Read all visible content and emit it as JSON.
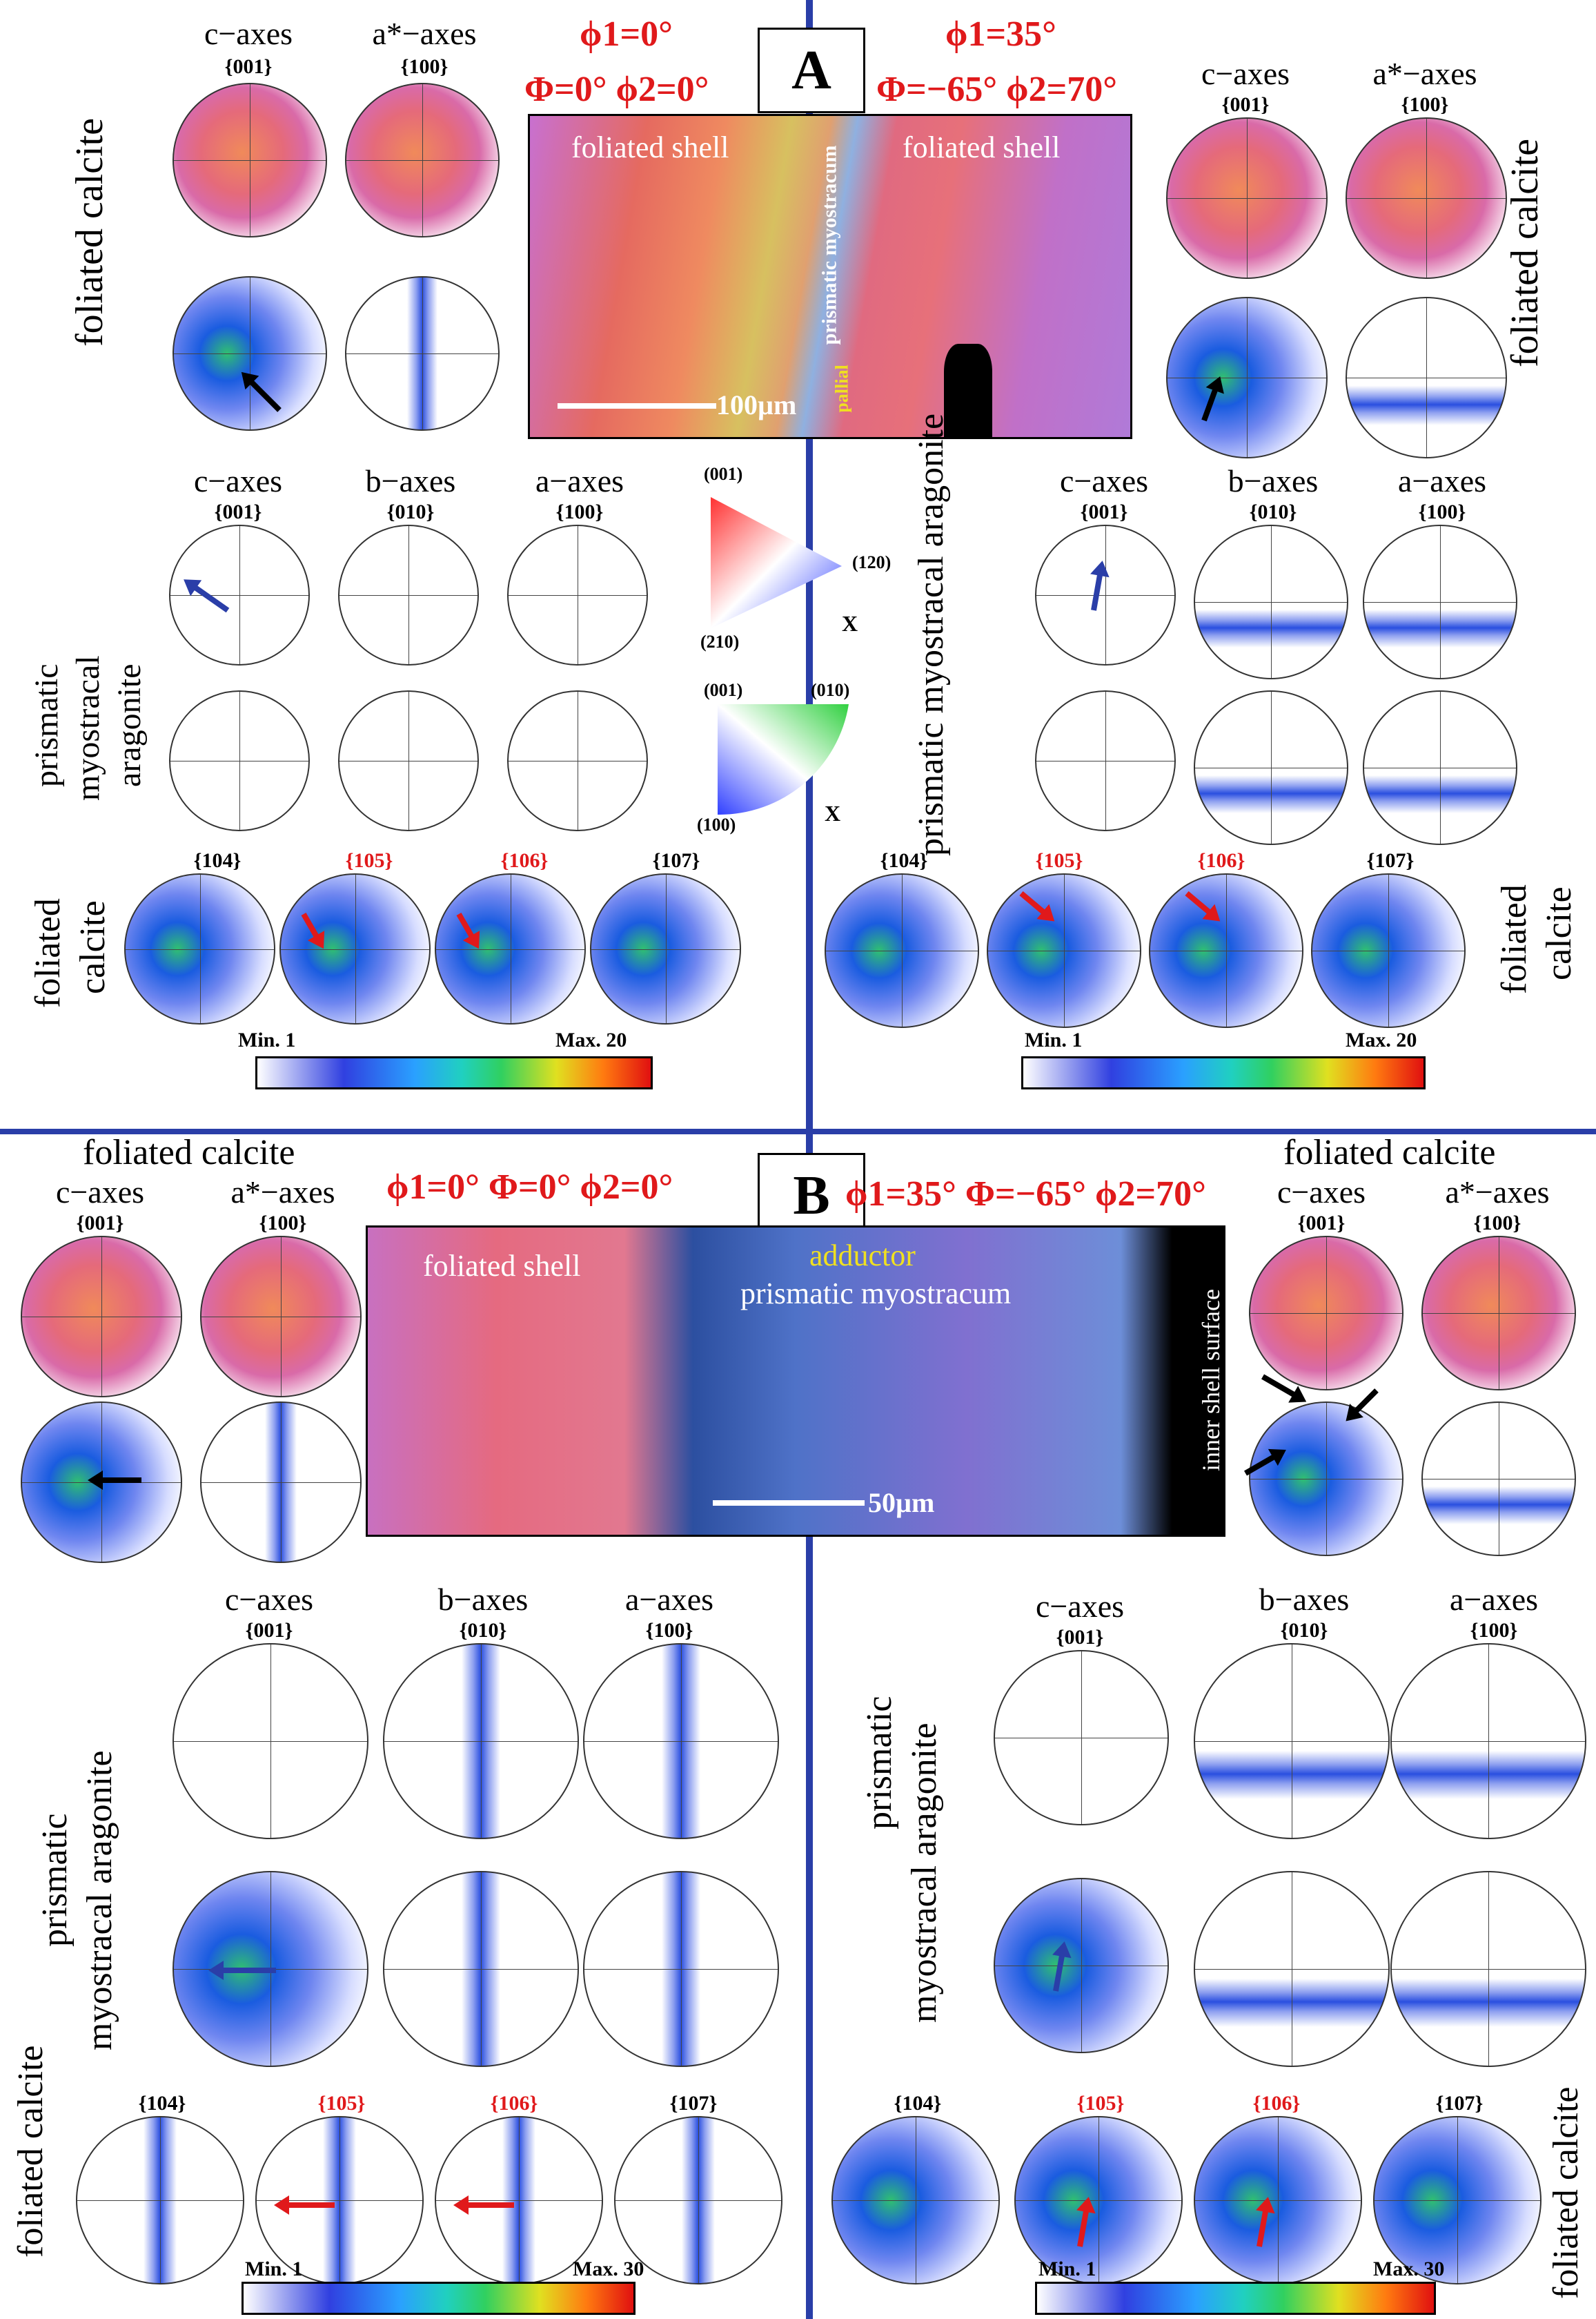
{
  "panel_a": {
    "letter": "A",
    "euler_left_line1": "ϕ1=0°",
    "euler_left_line2": "Φ=0° ϕ2=0°",
    "euler_right_line1": "ϕ1=35°",
    "euler_right_line2": "Φ=−65° ϕ2=70°",
    "map_left_label": "foliated shell",
    "map_right_label": "foliated shell",
    "map_mid_label": "prismatic myostracum",
    "map_pallial_label": "pallial",
    "scale_label": "100µm",
    "side_label": "foliated calcite",
    "ax_c": "c−axes",
    "ax_a_star": "a*−axes",
    "ax_b": "b−axes",
    "ax_a": "a−axes",
    "plane_001": "{001}",
    "plane_100": "{100}",
    "plane_010": "{010}",
    "aragonite_label_l1": "prismatic",
    "aragonite_label_l2": "myostracal",
    "aragonite_label_l3": "aragonite",
    "aragonite_label_right": "prismatic myostracal aragonite",
    "calcite_l1": "foliated",
    "calcite_l2": "calcite",
    "planes": [
      "{104}",
      "{105}",
      "{106}",
      "{107}"
    ],
    "scale_min": "Min. 1",
    "scale_max": "Max. 20"
  },
  "ipf_key": {
    "aragonite": {
      "top": "(001)",
      "right": "(120)",
      "bottom": "(210)",
      "axis": "X"
    },
    "calcite": {
      "top_left": "(001)",
      "top_right": "(010)",
      "bottom": "(100)",
      "axis": "X"
    }
  },
  "panel_b": {
    "letter": "B",
    "euler_left": "ϕ1=0° Φ=0° ϕ2=0°",
    "euler_right": "ϕ1=35° Φ=−65° ϕ2=70°",
    "map_left_label": "foliated shell",
    "map_adductor": "adductor",
    "map_myostracum": "prismatic myostracum",
    "map_inner": "inner shell surface",
    "scale_label": "50µm",
    "foliated_title": "foliated calcite",
    "ax_c": "c−axes",
    "ax_a_star": "a*−axes",
    "ax_b": "b−axes",
    "ax_a": "a−axes",
    "plane_001": "{001}",
    "plane_100": "{100}",
    "plane_010": "{010}",
    "aragonite_left_l1": "prismatic",
    "aragonite_left_l2": "myostracal aragonite",
    "aragonite_right_l1": "prismatic",
    "aragonite_right_l2": "myostracal aragonite",
    "calcite_side": "foliated calcite",
    "planes": [
      "{104}",
      "{105}",
      "{106}",
      "{107}"
    ],
    "scale_min": "Min. 1",
    "scale_max": "Max. 30"
  },
  "colors": {
    "accent_red": "#e0191b",
    "divider_blue": "#2a3ea8"
  }
}
